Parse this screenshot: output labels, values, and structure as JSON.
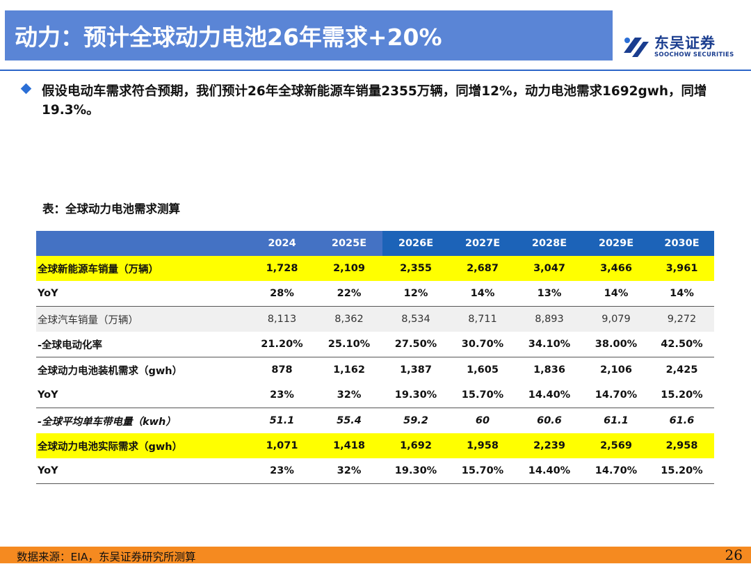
{
  "slide": {
    "title": "动力：预计全球动力电池26年需求+20%",
    "logo_cn": "东吴证券",
    "logo_en": "SOOCHOW SECURITIES",
    "bullet": "假设电动车需求符合预期，我们预计26年全球新能源车销量2355万辆，同增12%，动力电池需求1692gwh，同增19.3%。",
    "table_caption": "表：全球动力电池需求测算",
    "source": "数据来源：EIA，东吴证券研究所测算",
    "page_number": "26",
    "colors": {
      "header_blue": "#4472c4",
      "header_dark": "#1c63b8",
      "highlight": "#ffff00",
      "footer": "#f58a20"
    }
  },
  "table": {
    "headers": [
      "",
      "2024",
      "2025E",
      "2026E",
      "2027E",
      "2028E",
      "2029E",
      "2030E"
    ],
    "rows": [
      [
        "全球新能源车销量（万辆）",
        "1,728",
        "2,109",
        "2,355",
        "2,687",
        "3,047",
        "3,466",
        "3,961"
      ],
      [
        "YoY",
        "28%",
        "22%",
        "12%",
        "14%",
        "13%",
        "14%",
        "14%"
      ],
      [
        "全球汽车销量（万辆）",
        "8,113",
        "8,362",
        "8,534",
        "8,711",
        "8,893",
        "9,079",
        "9,272"
      ],
      [
        "-全球电动化率",
        "21.20%",
        "25.10%",
        "27.50%",
        "30.70%",
        "34.10%",
        "38.00%",
        "42.50%"
      ],
      [
        "全球动力电池装机需求（gwh）",
        "878",
        "1,162",
        "1,387",
        "1,605",
        "1,836",
        "2,106",
        "2,425"
      ],
      [
        "YoY",
        "23%",
        "32%",
        "19.30%",
        "15.70%",
        "14.40%",
        "14.70%",
        "15.20%"
      ],
      [
        "-全球平均单车带电量（kwh）",
        "51.1",
        "55.4",
        "59.2",
        "60",
        "60.6",
        "61.1",
        "61.6"
      ],
      [
        "全球动力电池实际需求（gwh）",
        "1,071",
        "1,418",
        "1,692",
        "1,958",
        "2,239",
        "2,569",
        "2,958"
      ],
      [
        "YoY",
        "23%",
        "32%",
        "19.30%",
        "15.70%",
        "14.40%",
        "14.70%",
        "15.20%"
      ]
    ]
  }
}
